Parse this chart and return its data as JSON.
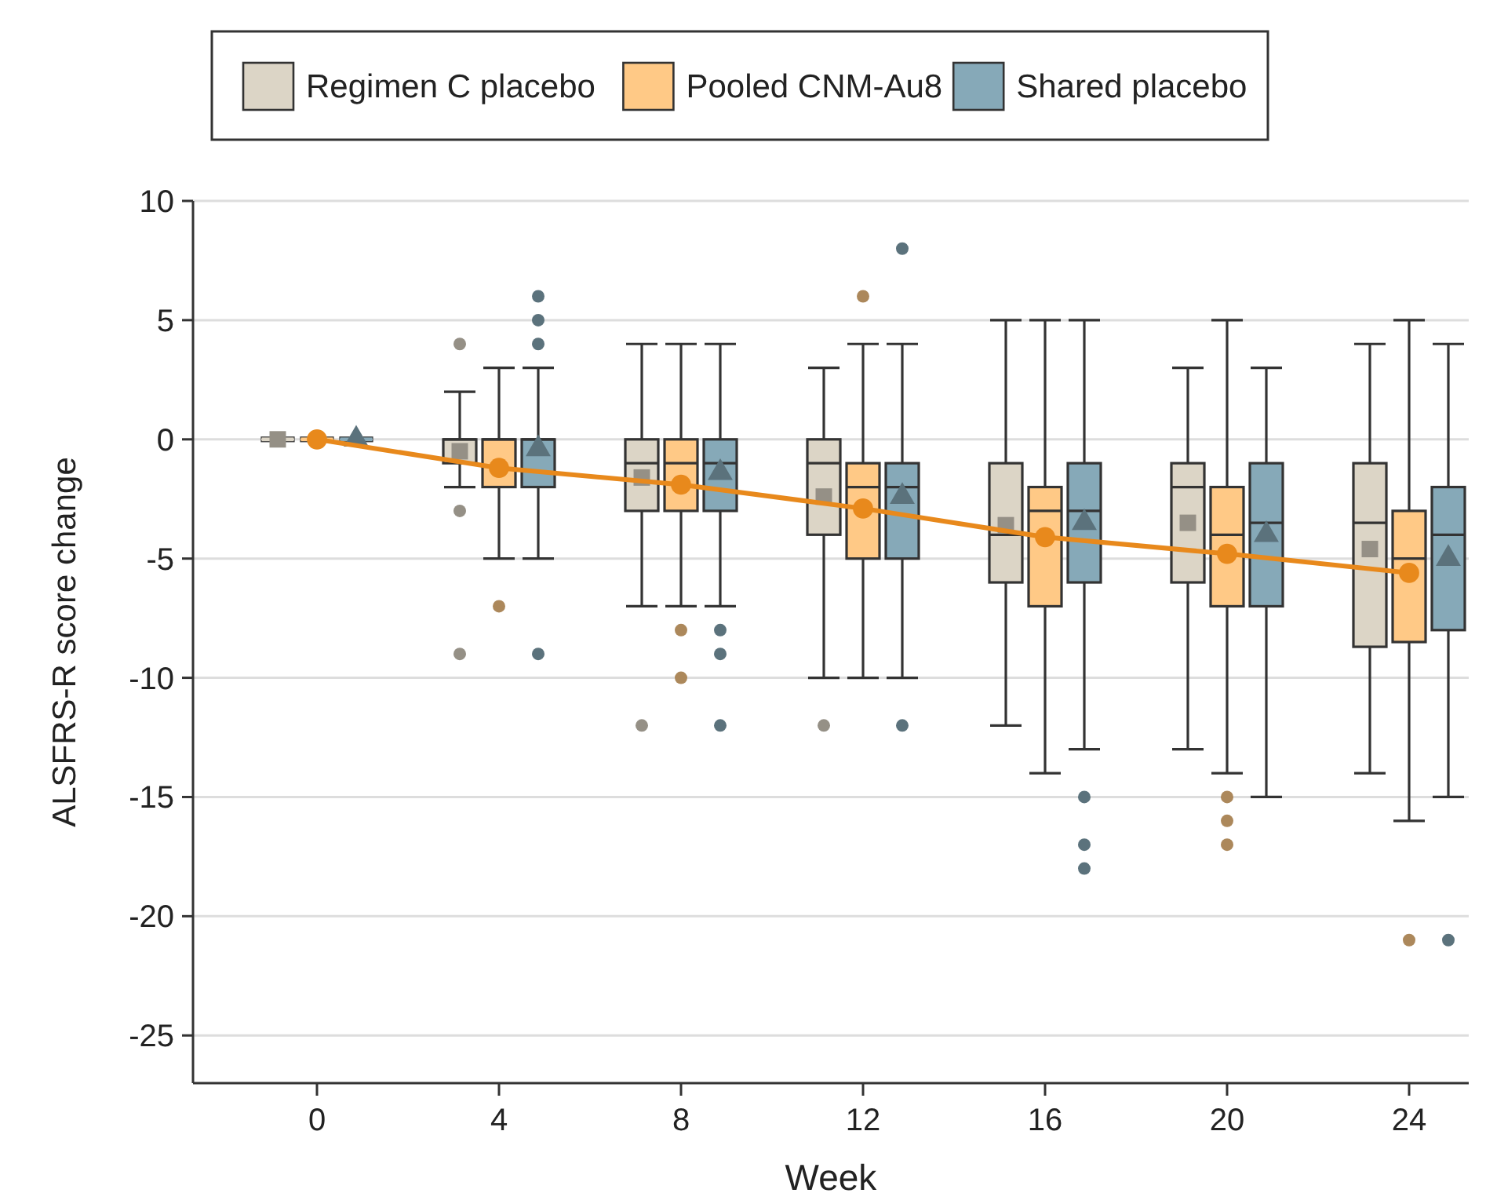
{
  "chart_data": {
    "type": "box",
    "xlabel": "Week",
    "ylabel": "ALSFRS-R score change",
    "categories": [
      "0",
      "4",
      "8",
      "12",
      "16",
      "20",
      "24"
    ],
    "ylim": [
      -27,
      10
    ],
    "yticks": [
      10,
      5,
      0,
      -5,
      -10,
      -15,
      -20,
      -25
    ],
    "grid": "y",
    "legend": "top",
    "series": [
      {
        "name": "Regimen C placebo",
        "color": "#dcd5c6",
        "marker": "square",
        "boxes": [
          {
            "low": 0,
            "q1": 0,
            "median": 0,
            "q3": 0,
            "high": 0,
            "mean": 0
          },
          {
            "low": -2,
            "q1": -1,
            "median": 0,
            "q3": 0,
            "high": 2,
            "mean": -0.5,
            "outliers": [
              4,
              -3,
              -9
            ]
          },
          {
            "low": -7,
            "q1": -3,
            "median": -1,
            "q3": 0,
            "high": 4,
            "mean": -1.6,
            "outliers": [
              -12
            ]
          },
          {
            "low": -10,
            "q1": -4,
            "median": -1,
            "q3": 0,
            "high": 3,
            "mean": -2.4,
            "outliers": [
              -12
            ]
          },
          {
            "low": -12,
            "q1": -6,
            "median": -4,
            "q3": -1,
            "high": 5,
            "mean": -3.6
          },
          {
            "low": -13,
            "q1": -6,
            "median": -2,
            "q3": -1,
            "high": 3,
            "mean": -3.5
          },
          {
            "low": -14,
            "q1": -8.7,
            "median": -3.5,
            "q3": -1,
            "high": 4,
            "mean": -4.6
          }
        ]
      },
      {
        "name": "Pooled CNM-Au8",
        "color": "#ffc986",
        "boxes": [
          {
            "low": 0,
            "q1": 0,
            "median": 0,
            "q3": 0,
            "high": 0
          },
          {
            "low": -5,
            "q1": -2,
            "median": 0,
            "q3": 0,
            "high": 3,
            "outliers": [
              -7
            ]
          },
          {
            "low": -7,
            "q1": -3,
            "median": -1,
            "q3": 0,
            "high": 4,
            "outliers": [
              -8,
              -10
            ]
          },
          {
            "low": -10,
            "q1": -5,
            "median": -2,
            "q3": -1,
            "high": 4,
            "outliers": [
              6
            ]
          },
          {
            "low": -14,
            "q1": -7,
            "median": -3,
            "q3": -2,
            "high": 5
          },
          {
            "low": -14,
            "q1": -7,
            "median": -4,
            "q3": -2,
            "high": 5,
            "outliers": [
              -15,
              -16,
              -17
            ]
          },
          {
            "low": -16,
            "q1": -8.5,
            "median": -5,
            "q3": -3,
            "high": 5,
            "outliers": [
              -21
            ]
          }
        ]
      },
      {
        "name": "Shared placebo",
        "color": "#86a9b8",
        "marker": "triangle",
        "boxes": [
          {
            "low": 0,
            "q1": 0,
            "median": 0,
            "q3": 0,
            "high": 0,
            "mean": 0
          },
          {
            "low": -5,
            "q1": -2,
            "median": 0,
            "q3": 0,
            "high": 3,
            "mean": -0.4,
            "outliers": [
              6,
              5,
              4,
              -9
            ]
          },
          {
            "low": -7,
            "q1": -3,
            "median": -1,
            "q3": 0,
            "high": 4,
            "mean": -1.4,
            "outliers": [
              -8,
              -9,
              -12
            ]
          },
          {
            "low": -10,
            "q1": -5,
            "median": -2,
            "q3": -1,
            "high": 4,
            "mean": -2.4,
            "outliers": [
              8,
              -12
            ]
          },
          {
            "low": -13,
            "q1": -6,
            "median": -3,
            "q3": -1,
            "high": 5,
            "mean": -3.5,
            "outliers": [
              -15,
              -17,
              -18
            ]
          },
          {
            "low": -15,
            "q1": -7,
            "median": -3.5,
            "q3": -1,
            "high": 3,
            "mean": -4.0
          },
          {
            "low": -15,
            "q1": -8,
            "median": -4,
            "q3": -2,
            "high": 4,
            "mean": -5.0,
            "outliers": [
              -21
            ]
          }
        ]
      },
      {
        "type": "line",
        "color": "#e8891c",
        "marker": "circle",
        "line_style": "solid",
        "values": [
          0,
          -1.2,
          -1.9,
          -2.9,
          -4.1,
          -4.8,
          -5.6
        ]
      }
    ]
  }
}
